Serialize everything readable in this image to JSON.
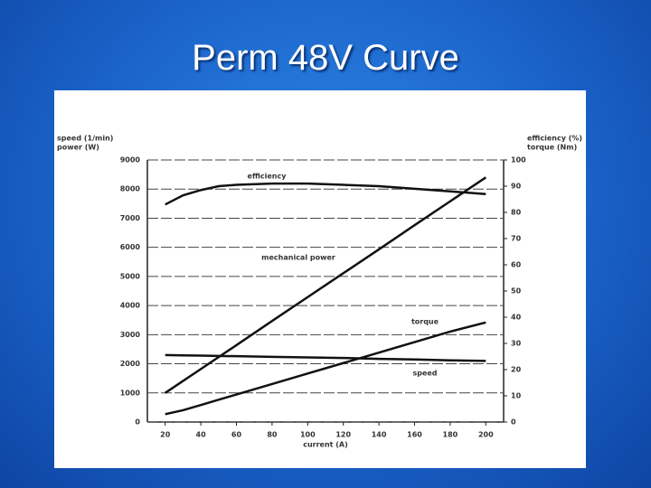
{
  "title": "Perm 48V Curve",
  "chart_data": {
    "type": "line",
    "ylabel": [
      "speed (1/min)",
      "power (W)"
    ],
    "y2label": [
      "efficiency (%)",
      "torque (Nm)"
    ],
    "xlabel": "current (A)",
    "x": [
      20,
      30,
      40,
      50,
      60,
      80,
      100,
      120,
      140,
      160,
      180,
      200
    ],
    "xlim": [
      10,
      210
    ],
    "xticks": [
      20,
      40,
      60,
      80,
      100,
      120,
      140,
      160,
      180,
      200
    ],
    "ylim": [
      0,
      9000
    ],
    "yticks": [
      0,
      1000,
      2000,
      3000,
      4000,
      5000,
      6000,
      7000,
      8000,
      9000
    ],
    "y2lim": [
      0,
      100
    ],
    "y2ticks": [
      0,
      10,
      20,
      30,
      40,
      50,
      60,
      70,
      80,
      90,
      100
    ],
    "grid": true,
    "series": [
      {
        "name": "efficiency",
        "color": "#111111",
        "axis": "y2",
        "values": [
          83,
          86.5,
          88.5,
          90,
          90.5,
          91,
          91,
          90.5,
          90,
          89,
          88,
          87
        ]
      },
      {
        "name": "mechanical power",
        "color": "#111111",
        "values": [
          1000,
          1410,
          1820,
          2230,
          2640,
          3470,
          4290,
          5110,
          5930,
          6760,
          7580,
          8400
        ]
      },
      {
        "name": "torque",
        "color": "#111111",
        "axis": "y2",
        "values": [
          3,
          4.5,
          6.5,
          8.5,
          10.5,
          14.5,
          18.5,
          22.5,
          26.5,
          30.5,
          34.5,
          38
        ]
      },
      {
        "name": "speed",
        "color": "#111111",
        "values": [
          2300,
          2290,
          2280,
          2270,
          2260,
          2240,
          2220,
          2200,
          2170,
          2150,
          2120,
          2100
        ]
      }
    ]
  }
}
